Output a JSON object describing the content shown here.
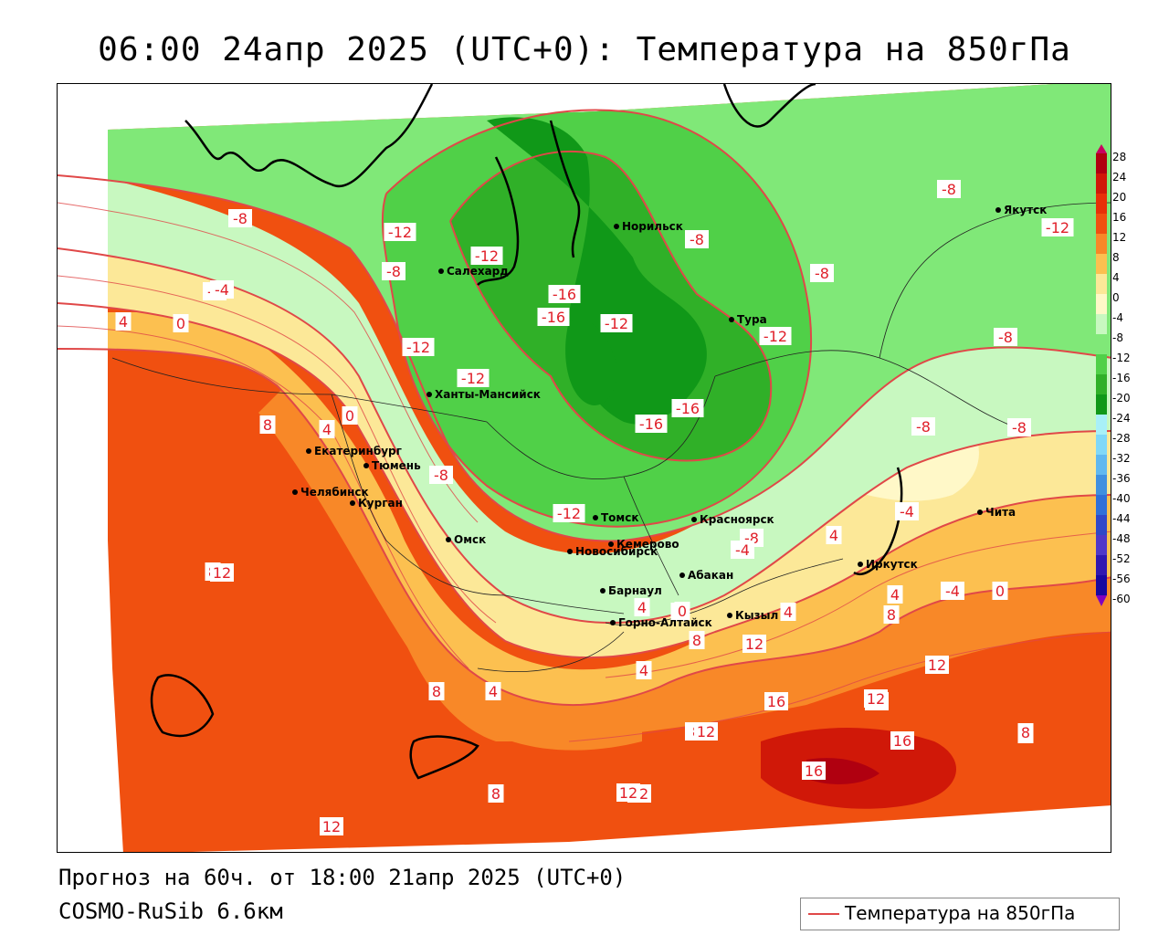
{
  "title": "06:00 24апр 2025 (UTC+0): Температура на 850гПа",
  "footer": {
    "forecast": "Прогноз на 60ч. от 18:00 21апр 2025 (UTC+0)",
    "model": "COSMO-RuSib 6.6км"
  },
  "legend": {
    "label": "Температура на 850гПа",
    "line_color": "#e04848"
  },
  "colorbar": {
    "ticks": [
      "28",
      "24",
      "20",
      "16",
      "12",
      "8",
      "4",
      "0",
      "-4",
      "-8",
      "-12",
      "-16",
      "-20",
      "-24",
      "-28",
      "-32",
      "-36",
      "-40",
      "-44",
      "-48",
      "-52",
      "-56",
      "-60"
    ],
    "colors": [
      "#c80060",
      "#b00010",
      "#d01808",
      "#e83008",
      "#f05010",
      "#f88828",
      "#fcc050",
      "#fce898",
      "#fff8c8",
      "#c8f8c0",
      "#80e878",
      "#50d048",
      "#30b028",
      "#109818",
      "#a8f0f8",
      "#80d8f8",
      "#60b8f0",
      "#4090e0",
      "#3070d8",
      "#3048c8",
      "#5038c8",
      "#3018b0",
      "#1808a0",
      "#8000c0"
    ]
  },
  "cities": [
    {
      "name": "Норильск"
    },
    {
      "name": "Якутск"
    },
    {
      "name": "Салехард"
    },
    {
      "name": "Тура"
    },
    {
      "name": "Ханты-Мансийск"
    },
    {
      "name": "Екатеринбург"
    },
    {
      "name": "Тюмень"
    },
    {
      "name": "Челябинск"
    },
    {
      "name": "Курган"
    },
    {
      "name": "Омск"
    },
    {
      "name": "Новосибирск"
    },
    {
      "name": "Томск"
    },
    {
      "name": "Кемерово"
    },
    {
      "name": "Красноярск"
    },
    {
      "name": "Барнаул"
    },
    {
      "name": "Абакан"
    },
    {
      "name": "Горно-Алтайск"
    },
    {
      "name": "Кызыл"
    },
    {
      "name": "Иркутск"
    },
    {
      "name": "Чита"
    }
  ],
  "contour_labels": [
    "-8",
    "-12",
    "-8",
    "-4",
    "4",
    "0",
    "-12",
    "-12",
    "-16",
    "-16",
    "-12",
    "-12",
    "-16",
    "-16",
    "-12",
    "-8",
    "-8",
    "-12",
    "-8",
    "-8",
    "-8",
    "-8",
    "-4",
    "0",
    "-4",
    "4",
    "0",
    "-4",
    "-8",
    "-12",
    "-8",
    "-4",
    "8",
    "4",
    "0",
    "8",
    "12",
    "8",
    "4",
    "8",
    "12",
    "12",
    "16",
    "16",
    "16",
    "12",
    "12",
    "8",
    "12",
    "12",
    "16",
    "8",
    "8",
    "12",
    "4",
    "4",
    "8",
    "0",
    "4",
    "4",
    "8",
    "12"
  ]
}
